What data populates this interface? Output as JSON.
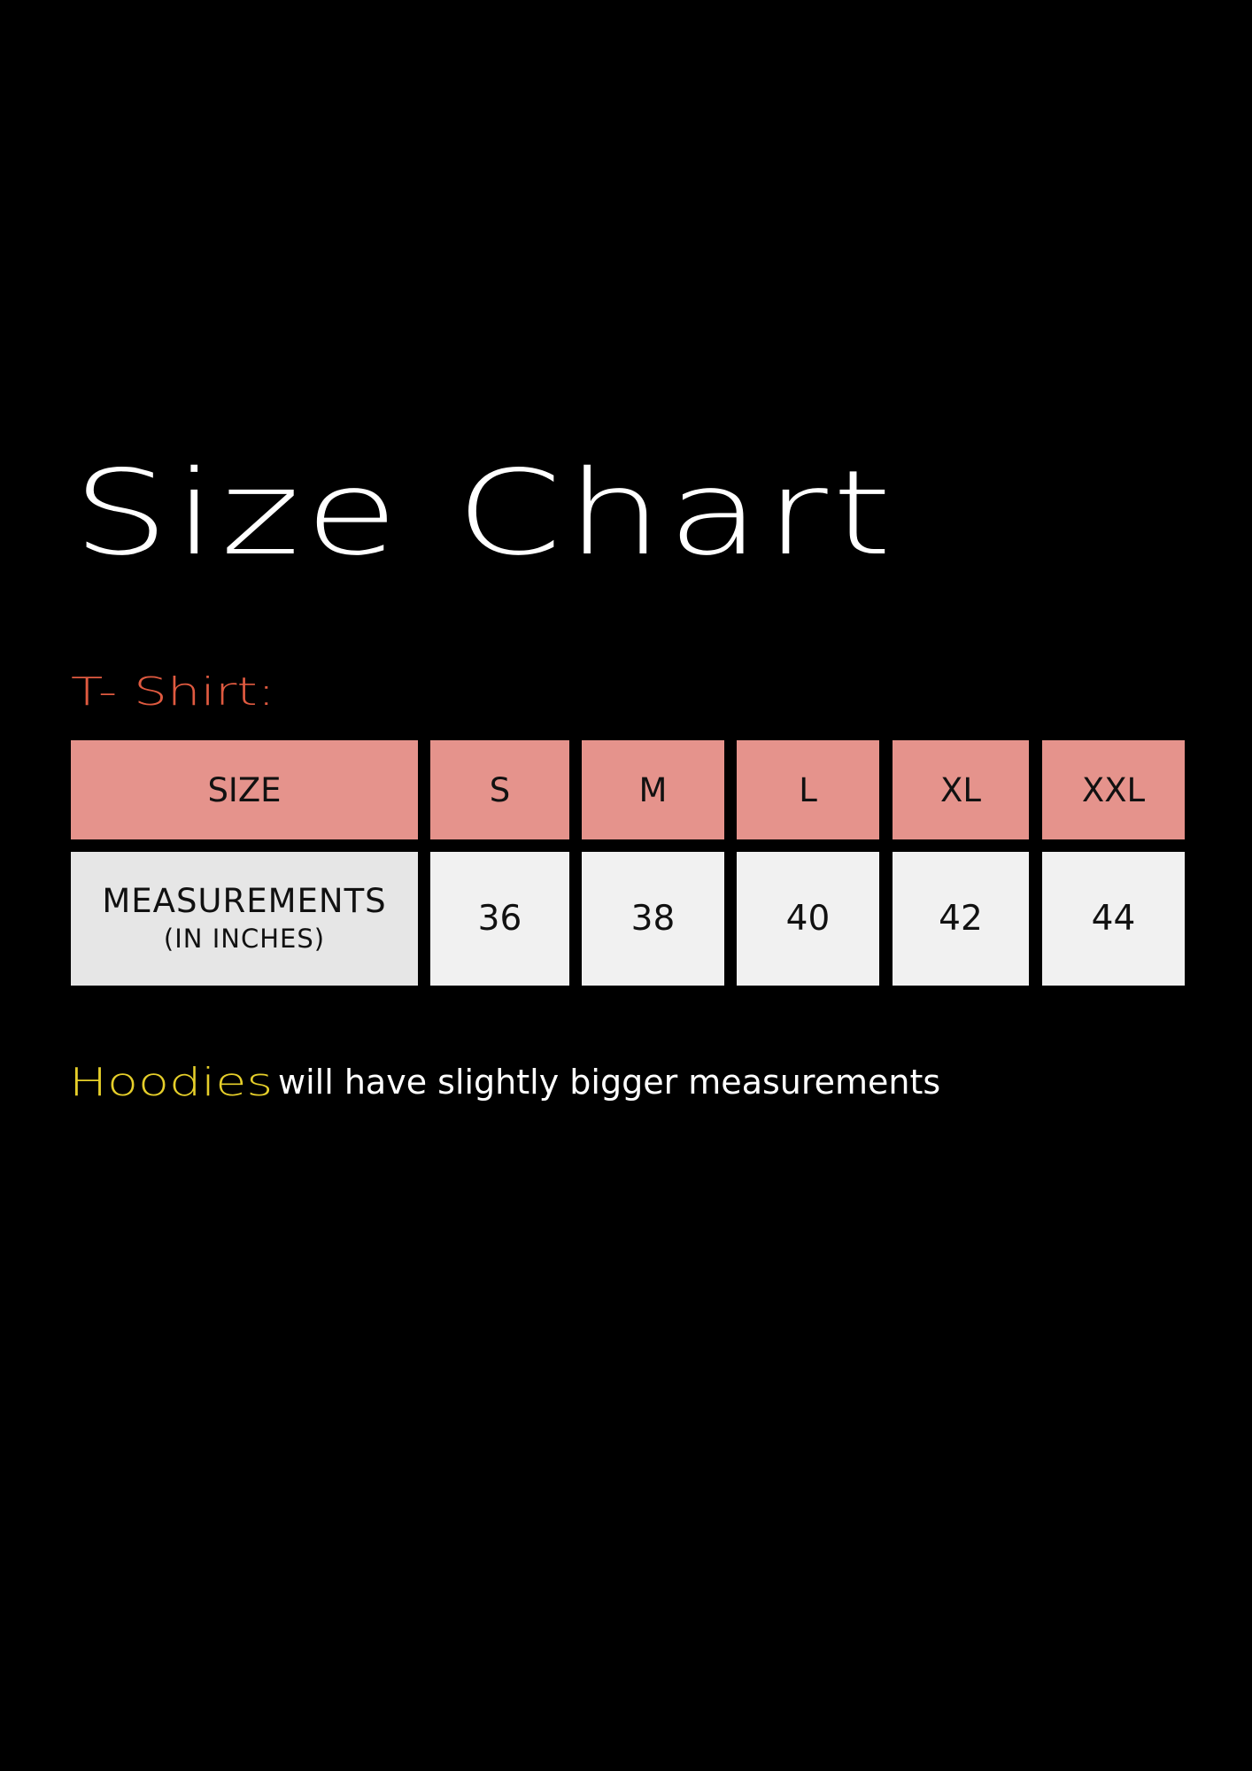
{
  "title": "Size Chart",
  "subtitle": "T- Shirt:",
  "table": {
    "header_label": "SIZE",
    "sizes": [
      "S",
      "M",
      "L",
      "XL",
      "XXL"
    ],
    "row_label_main": "MEASUREMENTS",
    "row_label_sub": "(IN INCHES)",
    "measurements": [
      "36",
      "38",
      "40",
      "42",
      "44"
    ]
  },
  "note": {
    "highlight": "Hoodies",
    "text": "will have slightly bigger measurements"
  },
  "colors": {
    "background": "#000000",
    "subtitle": "#e05a40",
    "header_cells": "#e5938c",
    "body_cells": "#f1f1f1",
    "highlight": "#e6cf2a"
  }
}
